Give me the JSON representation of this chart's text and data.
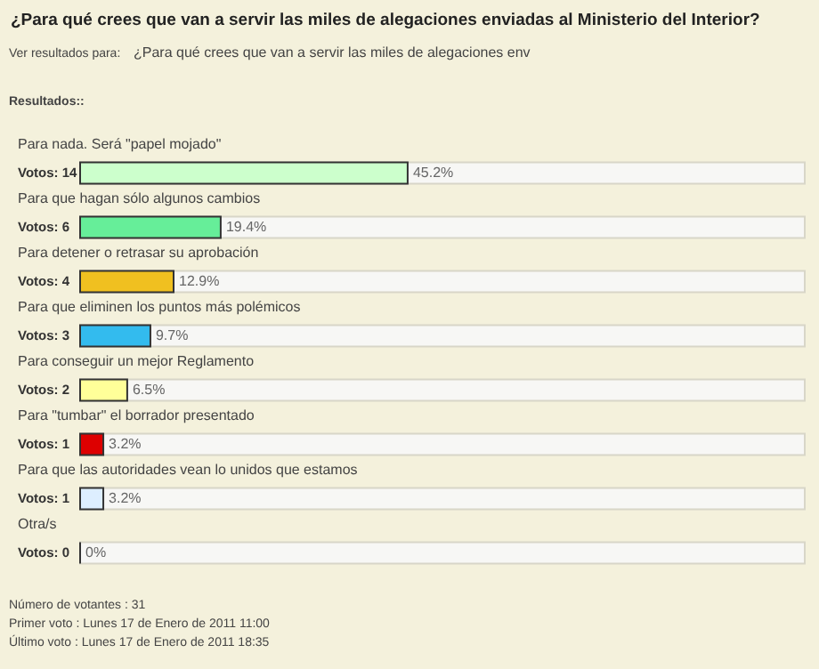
{
  "chart_data": {
    "type": "bar",
    "orientation": "horizontal",
    "title": "¿Para qué crees que van a servir las miles de alegaciones enviadas al Ministerio del Interior?",
    "categories": [
      "Para nada. Será \"papel mojado\"",
      "Para que hagan sólo algunos cambios",
      "Para detener o retrasar su aprobación",
      "Para que eliminen los puntos más polémicos",
      "Para conseguir un mejor Reglamento",
      "Para \"tumbar\" el borrador presentado",
      "Para que las autoridades vean lo unidos que estamos",
      "Otra/s"
    ],
    "values": [
      45.2,
      19.4,
      12.9,
      9.7,
      6.5,
      3.2,
      3.2,
      0
    ],
    "value_labels": [
      "45.2%",
      "19.4%",
      "12.9%",
      "9.7%",
      "6.5%",
      "3.2%",
      "3.2%",
      "0%"
    ],
    "colors": [
      "#ccffcc",
      "#66ee99",
      "#f0c020",
      "#33bbee",
      "#ffff99",
      "#dd0000",
      "#ddeeff",
      "#333333"
    ],
    "xlim": [
      0,
      100
    ],
    "tick_labels": false,
    "annotations": [
      "Ver resultados para:",
      "¿Para qué crees que van a servir las miles de alegaciones env",
      "Resultados::",
      "Número de votantes : 31",
      "Primer voto : Lunes 17 de Enero de 2011 11:00",
      "Último voto : Lunes 17 de Enero de 2011 18:35",
      "Votos: 14",
      "Votos: 6",
      "Votos: 4",
      "Votos: 3",
      "Votos: 2",
      "Votos: 1",
      "Votos: 1",
      "Votos: 0"
    ]
  }
}
